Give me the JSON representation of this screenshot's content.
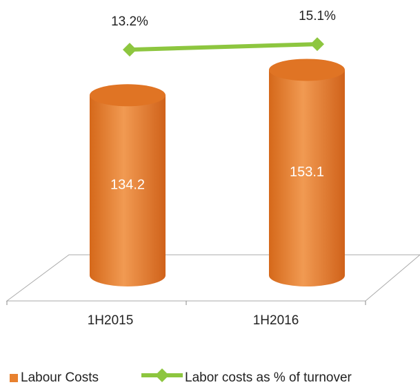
{
  "chart_data": {
    "type": "bar-line",
    "categories": [
      "1H2015",
      "1H2016"
    ],
    "series": [
      {
        "name": "Labour Costs",
        "type": "bar",
        "color": "#e8812f",
        "values": [
          134.2,
          153.1
        ]
      },
      {
        "name": "Labor costs as % of turnover",
        "type": "line",
        "axis": "y2",
        "color": "#8dc63f",
        "values": [
          13.2,
          15.1
        ],
        "value_labels": [
          "13.2%",
          "15.1%"
        ]
      }
    ],
    "ylim": [
      0,
      200
    ],
    "y2lim": [
      -65,
      28
    ],
    "legend": "bottom"
  }
}
